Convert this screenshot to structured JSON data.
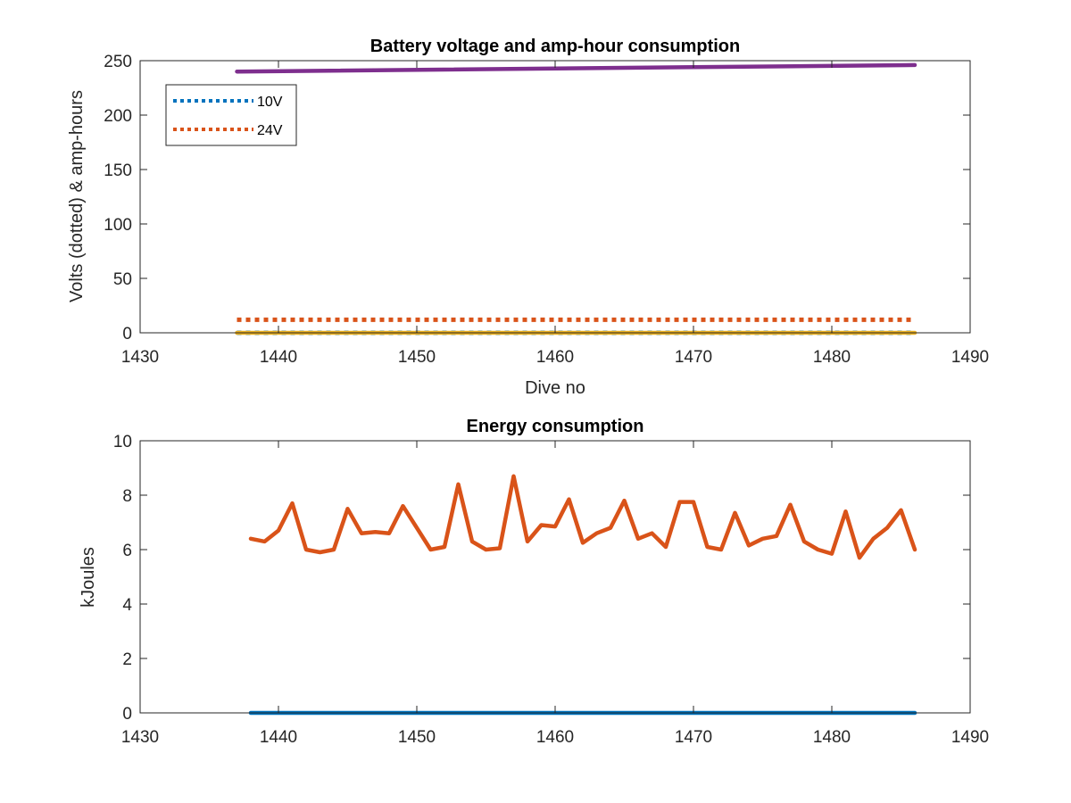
{
  "chart_data": [
    {
      "type": "line",
      "title": "Battery voltage and amp-hour consumption",
      "xlabel": "Dive no",
      "ylabel": "Volts (dotted) & amp-hours",
      "xlim": [
        1430,
        1490
      ],
      "ylim": [
        0,
        250
      ],
      "xticks": [
        1430,
        1440,
        1450,
        1460,
        1470,
        1480,
        1490
      ],
      "yticks": [
        0,
        50,
        100,
        150,
        200,
        250
      ],
      "grid": false,
      "legend": {
        "placement": "top-left",
        "entries": [
          "10V",
          "24V"
        ]
      },
      "series": [
        {
          "name": "10V",
          "style": "dotted",
          "color": "#0072BD",
          "x": [
            1437,
            1486
          ],
          "y": [
            0,
            0
          ]
        },
        {
          "name": "24V",
          "style": "dotted",
          "color": "#D95319",
          "x": [
            1437,
            1486
          ],
          "y": [
            12,
            12
          ]
        },
        {
          "style": "solid",
          "color": "#EDB120",
          "x": [
            1437,
            1486
          ],
          "y": [
            0,
            0
          ]
        },
        {
          "style": "solid",
          "color": "#7E2F8E",
          "x": [
            1437,
            1486
          ],
          "y": [
            240,
            246
          ]
        }
      ]
    },
    {
      "type": "line",
      "title": "Energy consumption",
      "xlabel": "",
      "ylabel": "kJoules",
      "xlim": [
        1430,
        1490
      ],
      "ylim": [
        0,
        10
      ],
      "xticks": [
        1430,
        1440,
        1450,
        1460,
        1470,
        1480,
        1490
      ],
      "yticks": [
        0,
        2,
        4,
        6,
        8,
        10
      ],
      "grid": false,
      "series": [
        {
          "style": "solid",
          "color": "#0072BD",
          "x": [
            1438,
            1486
          ],
          "y": [
            0,
            0
          ]
        },
        {
          "style": "solid",
          "color": "#D95319",
          "x": [
            1438,
            1439,
            1440,
            1441,
            1442,
            1443,
            1444,
            1445,
            1446,
            1447,
            1448,
            1449,
            1450,
            1451,
            1452,
            1453,
            1454,
            1455,
            1456,
            1457,
            1458,
            1459,
            1460,
            1461,
            1462,
            1463,
            1464,
            1465,
            1466,
            1467,
            1468,
            1469,
            1470,
            1471,
            1472,
            1473,
            1474,
            1475,
            1476,
            1477,
            1478,
            1479,
            1480,
            1481,
            1482,
            1483,
            1484,
            1485,
            1486
          ],
          "y": [
            6.4,
            6.3,
            6.7,
            7.7,
            6.0,
            5.9,
            6.0,
            7.5,
            6.6,
            6.65,
            6.6,
            7.6,
            6.8,
            6.0,
            6.1,
            8.4,
            6.3,
            6.0,
            6.05,
            8.7,
            6.3,
            6.9,
            6.85,
            7.85,
            6.25,
            6.6,
            6.8,
            7.8,
            6.4,
            6.6,
            6.1,
            7.75,
            7.75,
            6.1,
            6.0,
            7.35,
            6.15,
            6.4,
            6.5,
            7.65,
            6.3,
            6.0,
            5.85,
            7.4,
            5.7,
            6.4,
            6.8,
            7.45,
            6.0
          ]
        }
      ]
    }
  ]
}
